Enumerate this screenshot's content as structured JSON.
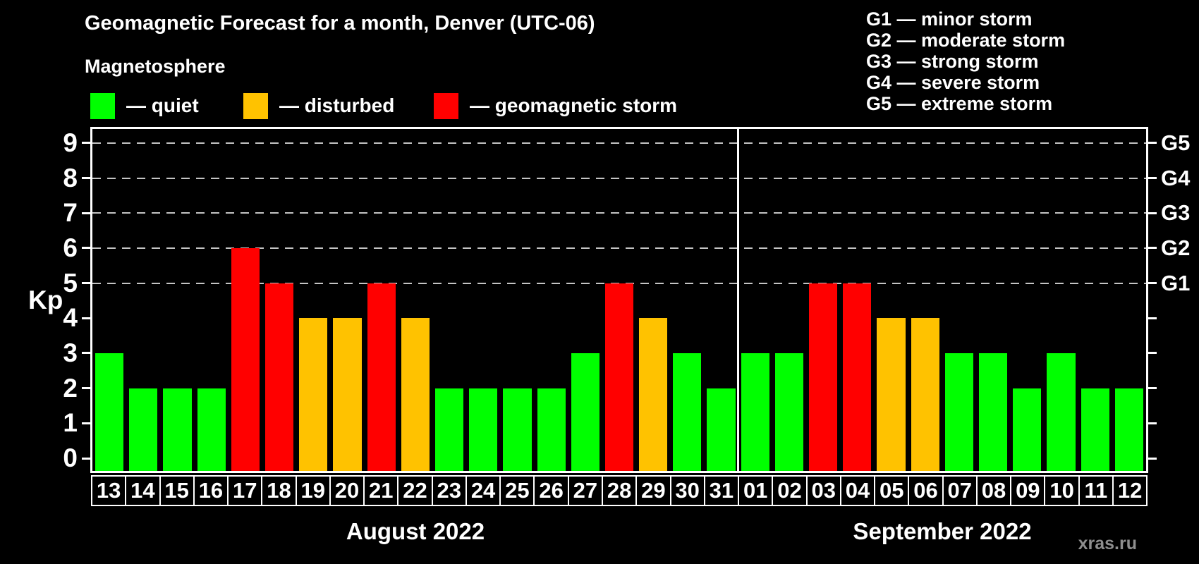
{
  "header": {
    "title": "Geomagnetic Forecast for a month, Denver (UTC-06)",
    "subtitle": "Magnetosphere"
  },
  "legend": {
    "quiet": "— quiet",
    "disturbed": "— disturbed",
    "storm": "— geomagnetic storm"
  },
  "g_legend": [
    "G1 — minor storm",
    "G2 — moderate storm",
    "G3 — strong storm",
    "G4 — severe storm",
    "G5 — extreme storm"
  ],
  "axis": {
    "kp_label": "Kp",
    "kp_ticks": [
      "0",
      "1",
      "2",
      "3",
      "4",
      "5",
      "6",
      "7",
      "8",
      "9"
    ],
    "right_labels": [
      {
        "kp": 5,
        "label": "G1"
      },
      {
        "kp": 6,
        "label": "G2"
      },
      {
        "kp": 7,
        "label": "G3"
      },
      {
        "kp": 8,
        "label": "G4"
      },
      {
        "kp": 9,
        "label": "G5"
      }
    ]
  },
  "colors": {
    "quiet": "#00ff00",
    "disturbed": "#ffc200",
    "storm": "#ff0000",
    "background": "#000000",
    "grid": "#c4c4c4",
    "watermark": "#8f8f8f"
  },
  "watermark": "xras.ru",
  "chart_data": {
    "type": "bar",
    "title": "Geomagnetic Forecast for a month, Denver (UTC-06)",
    "xlabel": "",
    "ylabel": "Kp",
    "ylim": [
      0,
      9
    ],
    "grid_kp": [
      5,
      6,
      7,
      8,
      9
    ],
    "legend_position": "top-left",
    "months": [
      {
        "label": "August 2022",
        "days": 19
      },
      {
        "label": "September 2022",
        "days": 12
      }
    ],
    "categories": [
      "13",
      "14",
      "15",
      "16",
      "17",
      "18",
      "19",
      "20",
      "21",
      "22",
      "23",
      "24",
      "25",
      "26",
      "27",
      "28",
      "29",
      "30",
      "31",
      "01",
      "02",
      "03",
      "04",
      "05",
      "06",
      "07",
      "08",
      "09",
      "10",
      "11",
      "12"
    ],
    "values": [
      3,
      2,
      2,
      2,
      6,
      5,
      4,
      4,
      5,
      4,
      2,
      2,
      2,
      2,
      3,
      5,
      4,
      3,
      2,
      3,
      3,
      5,
      5,
      4,
      4,
      3,
      3,
      2,
      3,
      2,
      2
    ],
    "levels": [
      "quiet",
      "quiet",
      "quiet",
      "quiet",
      "storm",
      "storm",
      "disturbed",
      "disturbed",
      "storm",
      "disturbed",
      "quiet",
      "quiet",
      "quiet",
      "quiet",
      "quiet",
      "storm",
      "disturbed",
      "quiet",
      "quiet",
      "quiet",
      "quiet",
      "storm",
      "storm",
      "disturbed",
      "disturbed",
      "quiet",
      "quiet",
      "quiet",
      "quiet",
      "quiet",
      "quiet"
    ]
  }
}
